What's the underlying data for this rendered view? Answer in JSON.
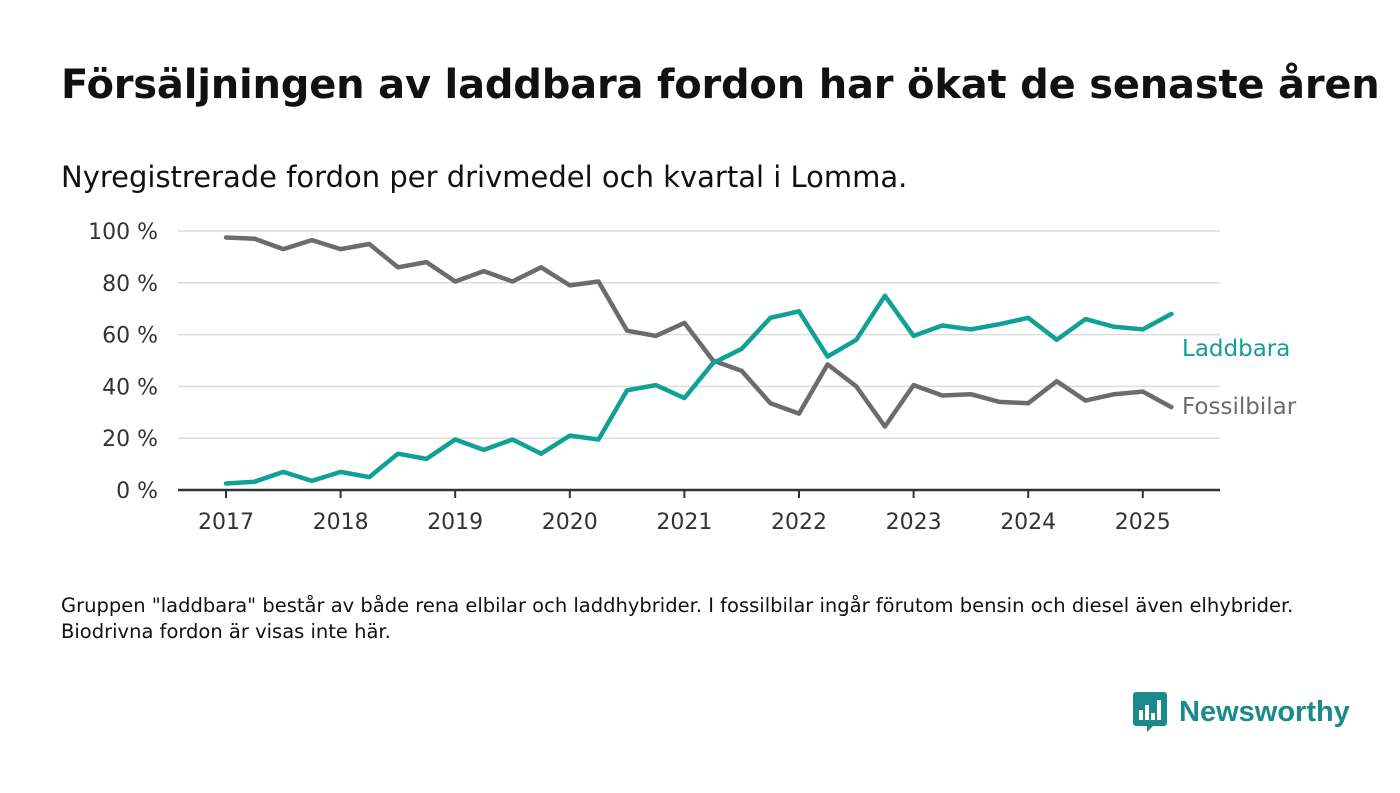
{
  "title": "Försäljningen av laddbara fordon har ökat de senaste åren",
  "subtitle": "Nyregistrerade fordon per drivmedel och kvartal i Lomma.",
  "footnote": "Gruppen \"laddbara\" består av både rena elbilar och laddhybrider. I fossilbilar ingår förutom bensin och diesel även elhybrider. Biodrivna fordon är visas inte här.",
  "brand": {
    "name": "Newsworthy",
    "icon": "newsworthy-logo-icon",
    "color": "#1a8a8c"
  },
  "chart_data": {
    "type": "line",
    "title": "Försäljningen av laddbara fordon har ökat de senaste åren",
    "subtitle": "Nyregistrerade fordon per drivmedel och kvartal i Lomma.",
    "xlabel": "",
    "ylabel": "",
    "ylim": [
      0,
      100
    ],
    "y_ticks": [
      0,
      20,
      40,
      60,
      80,
      100
    ],
    "y_tick_labels": [
      "0 %",
      "20 %",
      "40 %",
      "60 %",
      "80 %",
      "100 %"
    ],
    "x_ticks": [
      2017,
      2018,
      2019,
      2020,
      2021,
      2022,
      2023,
      2024,
      2025
    ],
    "x_tick_labels": [
      "2017",
      "2018",
      "2019",
      "2020",
      "2021",
      "2022",
      "2023",
      "2024",
      "2025"
    ],
    "x": [
      "2017-Q1",
      "2017-Q2",
      "2017-Q3",
      "2017-Q4",
      "2018-Q1",
      "2018-Q2",
      "2018-Q3",
      "2018-Q4",
      "2019-Q1",
      "2019-Q2",
      "2019-Q3",
      "2019-Q4",
      "2020-Q1",
      "2020-Q2",
      "2020-Q3",
      "2020-Q4",
      "2021-Q1",
      "2021-Q2",
      "2021-Q3",
      "2021-Q4",
      "2022-Q1",
      "2022-Q2",
      "2022-Q3",
      "2022-Q4",
      "2023-Q1",
      "2023-Q2",
      "2023-Q3",
      "2023-Q4",
      "2024-Q1",
      "2024-Q2",
      "2024-Q3",
      "2024-Q4",
      "2025-Q1",
      "2025-Q2"
    ],
    "grid": true,
    "legend": "direct labels at right end of lines",
    "series": [
      {
        "name": "Laddbara",
        "color": "#10a096",
        "values": [
          2.5,
          3.2,
          7.0,
          3.5,
          7.0,
          5.0,
          14.0,
          12.0,
          19.5,
          15.5,
          19.5,
          14.0,
          21.0,
          19.5,
          38.5,
          40.5,
          35.5,
          49.0,
          54.5,
          66.5,
          69.0,
          51.5,
          58.0,
          75.0,
          59.5,
          63.5,
          62.0,
          64.0,
          66.5,
          58.0,
          66.0,
          63.0,
          62.0,
          68.0
        ]
      },
      {
        "name": "Fossilbilar",
        "color": "#6b6b70",
        "values": [
          97.5,
          97.0,
          93.0,
          96.5,
          93.0,
          95.0,
          86.0,
          88.0,
          80.5,
          84.5,
          80.5,
          86.0,
          79.0,
          80.5,
          61.5,
          59.5,
          64.5,
          50.0,
          46.0,
          33.5,
          29.5,
          48.5,
          40.0,
          24.5,
          40.5,
          36.5,
          37.0,
          34.0,
          33.5,
          42.0,
          34.5,
          37.0,
          38.0,
          32.0
        ]
      }
    ]
  }
}
